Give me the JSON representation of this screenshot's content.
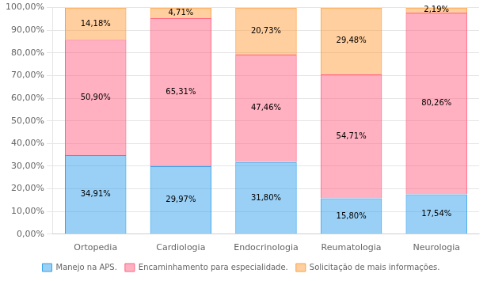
{
  "chart_data": {
    "type": "bar",
    "stacked": true,
    "categories": [
      "Ortopedia",
      "Cardiologia",
      "Endocrinologia",
      "Reumatologia",
      "Neurologia"
    ],
    "series": [
      {
        "name": "Manejo na APS.",
        "values": [
          34.91,
          29.97,
          31.8,
          15.8,
          17.54
        ],
        "value_labels": [
          "34,91%",
          "29,97%",
          "31,80%",
          "15,80%",
          "17,54%"
        ]
      },
      {
        "name": "Encaminhamento para especialidade.",
        "values": [
          50.9,
          65.31,
          47.46,
          54.71,
          80.26
        ],
        "value_labels": [
          "50,90%",
          "65,31%",
          "47,46%",
          "54,71%",
          "80,26%"
        ]
      },
      {
        "name": "Solicitação de mais informações.",
        "values": [
          14.18,
          4.71,
          20.73,
          29.48,
          2.19
        ],
        "value_labels": [
          "14,18%",
          "4,71%",
          "20,73%",
          "29,48%",
          "2,19%"
        ]
      }
    ],
    "ylim": [
      0,
      100
    ],
    "yticks": [
      {
        "value": 0,
        "label": "0,00%"
      },
      {
        "value": 10,
        "label": "10,00%"
      },
      {
        "value": 20,
        "label": "20,00%"
      },
      {
        "value": 30,
        "label": "30,00%"
      },
      {
        "value": 40,
        "label": "40,00%"
      },
      {
        "value": 50,
        "label": "50,00%"
      },
      {
        "value": 60,
        "label": "60,00%"
      },
      {
        "value": 70,
        "label": "70,00%"
      },
      {
        "value": 80,
        "label": "80,00%"
      },
      {
        "value": 90,
        "label": "90,00%"
      },
      {
        "value": 100,
        "label": "100,00%"
      }
    ],
    "grid": true,
    "legend": "bottom",
    "data_labels": true
  }
}
